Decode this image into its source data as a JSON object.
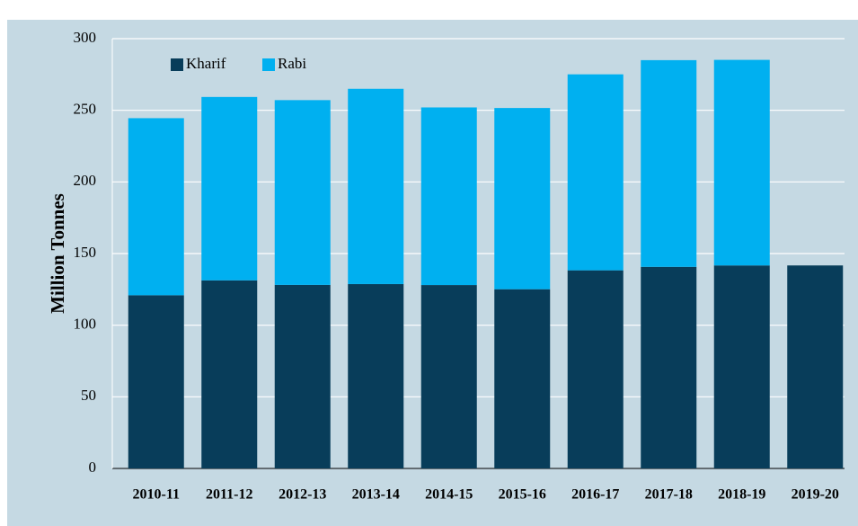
{
  "chart_data": {
    "type": "stacked_bar",
    "y_label": "Million Tonnes",
    "categories": [
      "2010-11",
      "2011-12",
      "2012-13",
      "2013-14",
      "2014-15",
      "2015-16",
      "2016-17",
      "2017-18",
      "2018-19",
      "2019-20"
    ],
    "series": [
      {
        "name": "Kharif",
        "color": "#083d5a",
        "values": [
          120.9,
          131.3,
          128.1,
          128.7,
          128.0,
          125.1,
          138.3,
          140.7,
          141.7,
          141.7
        ]
      },
      {
        "name": "Rabi",
        "color": "#00b0f0",
        "values": [
          123.6,
          128.0,
          129.0,
          136.3,
          124.0,
          126.5,
          136.8,
          144.3,
          143.5,
          null
        ]
      }
    ],
    "ylim": [
      0,
      300
    ],
    "yticks": [
      0,
      50,
      100,
      150,
      200,
      250,
      300
    ],
    "grid": true,
    "legend": "top-left"
  }
}
